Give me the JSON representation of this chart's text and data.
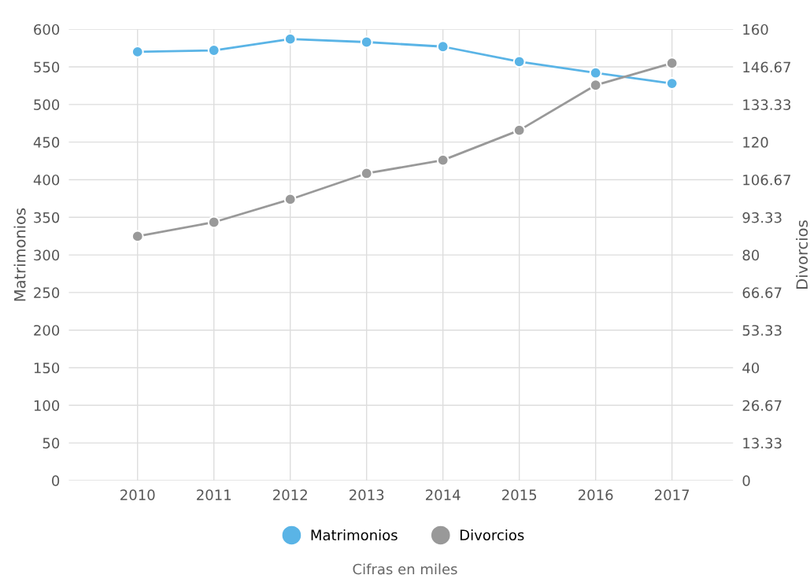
{
  "chart_data": {
    "type": "line",
    "categories": [
      "2010",
      "2011",
      "2012",
      "2013",
      "2014",
      "2015",
      "2016",
      "2017"
    ],
    "series": [
      {
        "name": "Matrimonios",
        "color": "#5ab4e6",
        "values": [
          570,
          572,
          587,
          583,
          577,
          557,
          542,
          528
        ]
      },
      {
        "name": "Divorcios",
        "color": "#999999",
        "axis": "y2",
        "values": [
          86.6,
          91.6,
          99.7,
          108.9,
          113.6,
          124.2,
          140.2,
          148
        ]
      }
    ],
    "ylabel": "Matrimonios",
    "y2label": "Divorcios",
    "ylim": [
      0,
      600
    ],
    "yticks": [
      0,
      50,
      100,
      150,
      200,
      250,
      300,
      350,
      400,
      450,
      500,
      550,
      600
    ],
    "y2lim": [
      0,
      160
    ],
    "y2ticks": [
      0,
      13.33,
      26.67,
      40,
      53.33,
      66.67,
      80,
      93.33,
      106.67,
      120,
      133.33,
      146.67,
      160
    ],
    "grid": true,
    "legend": "bottom",
    "marker": "circle",
    "line_style": "solid",
    "annotations": [
      "Cifras en miles"
    ]
  }
}
